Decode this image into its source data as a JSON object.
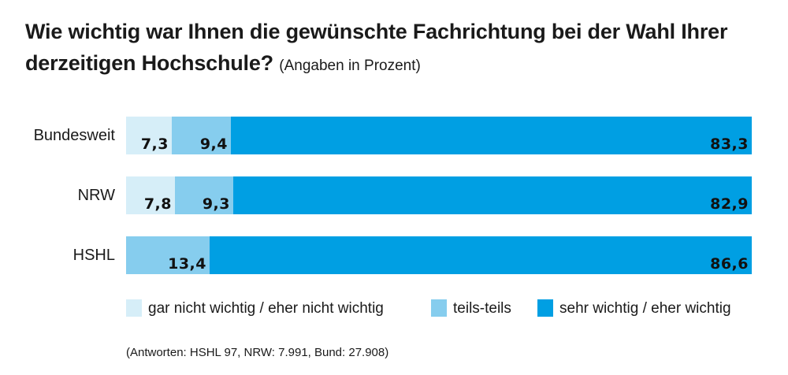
{
  "title": "Wie wichtig war Ihnen die gewünschte Fachrichtung bei der Wahl Ihrer derzeitigen Hochschule?",
  "subtitle": "(Angaben in Prozent)",
  "footnote": "(Antworten: HSHL 97, NRW: 7.991, Bund: 27.908)",
  "colors": {
    "gar_nicht": "#d6eef8",
    "teils": "#86cdee",
    "sehr": "#009fe3"
  },
  "chart_data": {
    "type": "bar",
    "orientation": "horizontal",
    "stacked": true,
    "xlim": [
      0,
      100
    ],
    "grid": false,
    "legend_position": "bottom",
    "categories": [
      "Bundesweit",
      "NRW",
      "HSHL"
    ],
    "series": [
      {
        "name": "gar nicht wichtig / eher nicht wichtig",
        "values": [
          7.3,
          7.8,
          0
        ],
        "labels": [
          "7,3",
          "7,8",
          ""
        ],
        "color_key": "gar_nicht"
      },
      {
        "name": "teils-teils",
        "values": [
          9.4,
          9.3,
          13.4
        ],
        "labels": [
          "9,4",
          "9,3",
          "13,4"
        ],
        "color_key": "teils"
      },
      {
        "name": "sehr wichtig / eher wichtig",
        "values": [
          83.3,
          82.9,
          86.6
        ],
        "labels": [
          "83,3",
          "82,9",
          "86,6"
        ],
        "color_key": "sehr"
      }
    ]
  }
}
